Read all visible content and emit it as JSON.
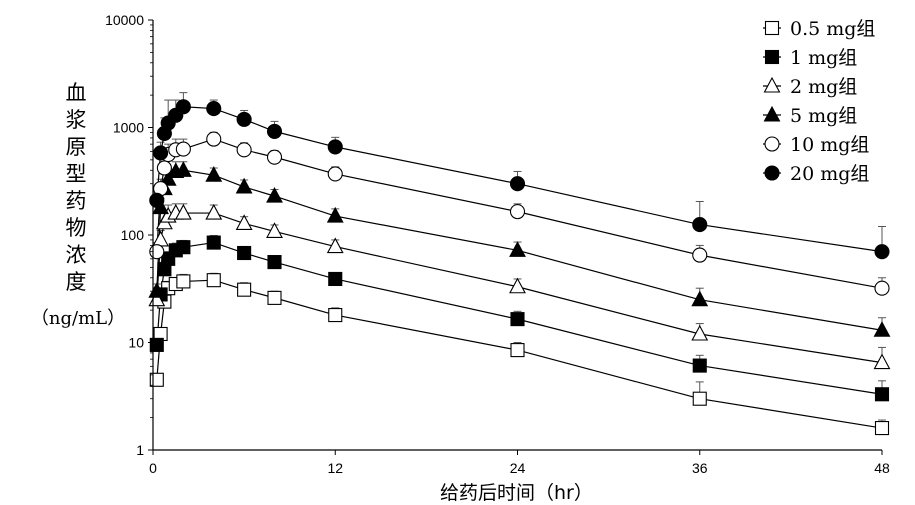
{
  "chart_data": {
    "type": "line",
    "title": "",
    "xlabel": "给药后时间（hr）",
    "ylabel": "血浆原型药物浓度",
    "ylabel_unit": "（ng/mL）",
    "yscale": "log",
    "xlim": [
      0,
      48
    ],
    "ylim": [
      1,
      10000
    ],
    "x_ticks": [
      "0",
      "12",
      "24",
      "36",
      "48"
    ],
    "x_tick_values": [
      0,
      12,
      24,
      36,
      48
    ],
    "y_ticks": [
      "1",
      "10",
      "100",
      "1000",
      "10000"
    ],
    "y_tick_values": [
      1,
      10,
      100,
      1000,
      10000
    ],
    "legend_position": "top-right",
    "x": [
      0.25,
      0.5,
      0.75,
      1,
      1.5,
      2,
      4,
      6,
      8,
      12,
      24,
      36,
      48
    ],
    "series": [
      {
        "name": "0.5 mg组",
        "marker": "square-open",
        "values": [
          4.5,
          12,
          24,
          32,
          35,
          37,
          38,
          31,
          26,
          18,
          8.5,
          3.0,
          1.6
        ],
        "err": [
          0.5,
          1.5,
          4,
          5,
          5,
          6,
          6,
          5,
          4,
          3,
          1.5,
          1.3,
          0.3
        ]
      },
      {
        "name": "1 mg组",
        "marker": "square-filled",
        "values": [
          9.5,
          28,
          48,
          60,
          72,
          77,
          85,
          68,
          56,
          39,
          16.5,
          6.1,
          3.3
        ],
        "err": [
          1,
          4,
          8,
          10,
          12,
          12,
          14,
          10,
          8,
          5,
          3,
          1.5,
          1.1
        ]
      },
      {
        "name": "2 mg组",
        "marker": "triangle-open",
        "values": [
          25,
          90,
          130,
          150,
          160,
          160,
          160,
          128,
          108,
          78,
          33,
          12,
          6.5
        ],
        "err": [
          4,
          20,
          30,
          40,
          35,
          35,
          30,
          20,
          16,
          12,
          6,
          3,
          2.5
        ]
      },
      {
        "name": "5 mg组",
        "marker": "triangle-filled",
        "values": [
          30,
          180,
          270,
          330,
          390,
          400,
          360,
          280,
          230,
          150,
          72,
          25,
          13
        ],
        "err": [
          5,
          40,
          60,
          80,
          90,
          80,
          60,
          45,
          35,
          25,
          14,
          7,
          4
        ]
      },
      {
        "name": "10 mg组",
        "marker": "circle-open",
        "values": [
          70,
          270,
          420,
          560,
          620,
          630,
          780,
          620,
          530,
          370,
          165,
          65,
          32
        ],
        "err": [
          15,
          60,
          120,
          140,
          160,
          150,
          120,
          100,
          80,
          60,
          30,
          15,
          8
        ]
      },
      {
        "name": "20 mg组",
        "marker": "circle-filled",
        "values": [
          210,
          580,
          880,
          1100,
          1300,
          1560,
          1500,
          1190,
          920,
          660,
          300,
          125,
          70
        ],
        "err": [
          40,
          150,
          350,
          700,
          500,
          550,
          300,
          250,
          220,
          150,
          90,
          80,
          50
        ]
      }
    ]
  }
}
